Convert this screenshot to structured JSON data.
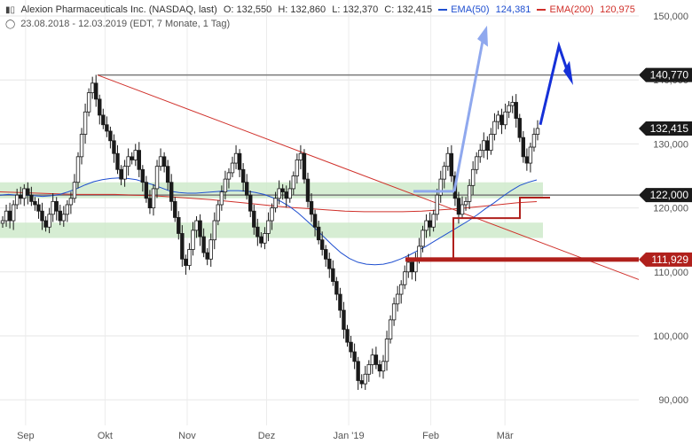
{
  "header": {
    "title": "Alexion Pharmaceuticals Inc. (NASDAQ, last)",
    "open": "O: 132,550",
    "high": "H: 132,860",
    "low": "L: 132,370",
    "close": "C: 132,415",
    "ema50_label": "EMA(50)",
    "ema50_value": "124,381",
    "ema200_label": "EMA(200)",
    "ema200_value": "120,975",
    "range": "23.08.2018 - 12.03.2019",
    "meta": "(EDT, 7 Monate, 1 Tag)"
  },
  "colors": {
    "candle": "#1a1a1a",
    "ema50": "#1f4fd0",
    "ema200": "#d0302a",
    "zone": "#cfeacb",
    "trendline": "#d0302a",
    "support_bar": "#b0201c",
    "arrow_light": "#8fa8ee",
    "arrow_dark": "#1530d8",
    "level_gray": "#7a7a7a"
  },
  "chart_data": {
    "type": "candlestick",
    "y_axis": {
      "ticks": [
        90000,
        100000,
        110000,
        120000,
        130000,
        140000,
        150000
      ],
      "tick_labels": [
        "90,000",
        "100,000",
        "110,000",
        "120,000",
        "130,000",
        "140,000",
        "150,000"
      ],
      "ylim": [
        86000,
        152500
      ]
    },
    "x_axis": {
      "labels": [
        {
          "label": "Sep",
          "date": "2018-09-01"
        },
        {
          "label": "Okt",
          "date": "2018-10-01"
        },
        {
          "label": "Nov",
          "date": "2018-11-01"
        },
        {
          "label": "Dez",
          "date": "2018-12-01"
        },
        {
          "label": "Jan '19",
          "date": "2019-01-01"
        },
        {
          "label": "Feb",
          "date": "2019-02-01"
        },
        {
          "label": "Mär",
          "date": "2019-03-01"
        }
      ],
      "start": "2018-08-23",
      "end": "2019-03-12"
    },
    "closes": [
      [
        118.0,
        119.5,
        118.0,
        120.5,
        122.0,
        121.5,
        123.0,
        122.0,
        121.0,
        120.5,
        119.5,
        118.0,
        117.0,
        119.0,
        121.0,
        119.5,
        118.0,
        119.0,
        120.5,
        121.5,
        124.0,
        128.0,
        131.5,
        135.0,
        138.0,
        139.5,
        137.0,
        134.5,
        133.0,
        132.0
      ],
      [
        130.5,
        128.5,
        126.0,
        124.5,
        126.5,
        128.0,
        127.5,
        129.0,
        126.0,
        124.0,
        121.5,
        120.0,
        123.0,
        126.5,
        128.0,
        126.5,
        124.0,
        121.0,
        118.5,
        116.0,
        112.0,
        111.0,
        113.5,
        116.5,
        118.0,
        115.5,
        113.0,
        112.0,
        115.0,
        118.0
      ],
      [
        120.5,
        122.5,
        124.5,
        125.5,
        127.0,
        128.5,
        126.0,
        124.0,
        122.0,
        119.5,
        117.0,
        115.5,
        114.5,
        116.0,
        118.0,
        120.0,
        121.5,
        123.0,
        122.5,
        121.5,
        123.0,
        125.0,
        127.5,
        128.5,
        124.5,
        121.0,
        119.0,
        117.0,
        115.0,
        113.5
      ],
      [
        112.0,
        110.5,
        108.5,
        106.5,
        104.0,
        101.0,
        99.0,
        97.5,
        96.0,
        93.0,
        92.5,
        94.0,
        95.5,
        97.0,
        95.5,
        94.5,
        96.0,
        99.5,
        102.5,
        105.0,
        106.5,
        108.0,
        110.0,
        111.5,
        110.0,
        112.0,
        114.0,
        116.5,
        118.0,
        117.0
      ],
      [
        119.0,
        122.0,
        124.5,
        126.5,
        128.5,
        125.0,
        121.5,
        119.0,
        120.5,
        121.0,
        123.5,
        126.0,
        128.0,
        129.0,
        130.5,
        129.0,
        131.5,
        133.5,
        134.5,
        133.0,
        135.0,
        136.0,
        136.5,
        134.0,
        131.0,
        128.0,
        127.0,
        129.5,
        131.5,
        132.415
      ]
    ],
    "ema50": [
      [
        122.0,
        122.1,
        122.0,
        122.0,
        121.9,
        121.8,
        121.9,
        122.1,
        122.5,
        123.0,
        123.6,
        124.1,
        124.4,
        124.6,
        124.7,
        124.6,
        124.4,
        124.0,
        123.6,
        123.1
      ],
      [
        122.6,
        122.4,
        122.3,
        122.3,
        122.4,
        122.5,
        122.6,
        122.7,
        122.7,
        122.6,
        122.4,
        122.1,
        121.6,
        121.0,
        120.2,
        119.2,
        118.0,
        116.8,
        115.5,
        114.2
      ],
      [
        113.0,
        112.1,
        111.5,
        111.2,
        111.1,
        111.2,
        111.5,
        112.0,
        112.6,
        113.3,
        114.0,
        114.8,
        115.6,
        116.4,
        117.2,
        118.0,
        118.9,
        119.9,
        120.8,
        121.8,
        122.7,
        123.5,
        124.0,
        124.381
      ]
    ],
    "ema200": [
      [
        122.5,
        122.4,
        122.3,
        122.2,
        122.1,
        122.1,
        122.1,
        122.0,
        121.9,
        121.7
      ],
      [
        121.5,
        121.3,
        121.0,
        120.7,
        120.4,
        120.1,
        119.9,
        119.7,
        119.5,
        119.4
      ],
      [
        119.4,
        119.4,
        119.5,
        119.7,
        119.9,
        120.2,
        120.5,
        120.8,
        120.975
      ]
    ],
    "horizontal_levels": [
      {
        "label": "140,770",
        "value": 140770
      },
      {
        "label": "132,415",
        "value": 132415
      },
      {
        "label": "122,000",
        "value": 122000
      },
      {
        "label": "111,929",
        "value": 111929
      }
    ],
    "support_zones": [
      {
        "from": 121500,
        "to": 124000
      },
      {
        "from": 115300,
        "to": 117700
      }
    ]
  }
}
